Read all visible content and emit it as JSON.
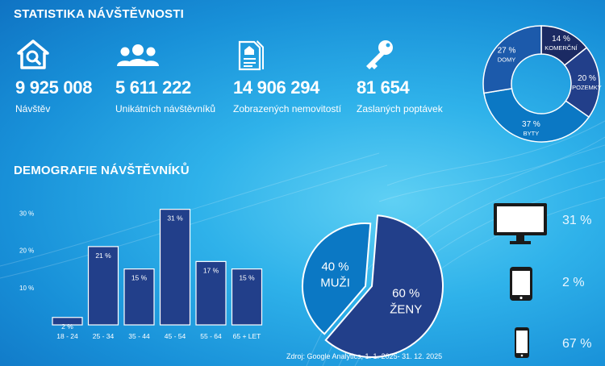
{
  "headings": {
    "stats": "STATISTIKA NÁVŠTĚVNOSTI",
    "demography": "DEMOGRAFIE NÁVŠTĚVNÍKŮ"
  },
  "stats": [
    {
      "icon": "house-search-icon",
      "value": "9 925 008",
      "label": "Návštěv"
    },
    {
      "icon": "users-icon",
      "value": "5 611 222",
      "label": "Unikátních návštěvníků"
    },
    {
      "icon": "listing-document-icon",
      "value": "14 906 294",
      "label": "Zobrazených nemovitostí"
    },
    {
      "icon": "key-icon",
      "value": "81 654",
      "label": "Zaslaných poptávek"
    }
  ],
  "chart_data": [
    {
      "type": "pie",
      "categories": [
        "KOMERČNÍ",
        "POZEMKY",
        "BYTY",
        "DOMY"
      ],
      "values": [
        14,
        20,
        37,
        27
      ],
      "labels": [
        "14 %",
        "20 %",
        "37 %",
        "27 %"
      ],
      "colors": [
        "#1b2a63",
        "#223f8a",
        "#0b78c4",
        "#1c5aab"
      ]
    },
    {
      "type": "bar",
      "categories": [
        "18 - 24",
        "25 - 34",
        "35 - 44",
        "45 - 54",
        "55 - 64",
        "65 + LET"
      ],
      "values": [
        2,
        21,
        15,
        31,
        17,
        15
      ],
      "labels": [
        "2 %",
        "21 %",
        "15 %",
        "31 %",
        "17 %",
        "15 %"
      ],
      "yticks": [
        10,
        20,
        30
      ],
      "ytick_labels": [
        "10 %",
        "20 %",
        "30 %"
      ],
      "ylim": [
        0,
        32
      ],
      "color": "#223f8a"
    },
    {
      "type": "pie",
      "categories": [
        "MUŽI",
        "ŽENY"
      ],
      "values": [
        40,
        60
      ],
      "labels": [
        "40 %",
        "60 %"
      ],
      "colors": [
        "#0b78c4",
        "#223f8a"
      ]
    },
    {
      "type": "bar",
      "categories": [
        "desktop-icon",
        "tablet-icon",
        "smartphone-icon"
      ],
      "values": [
        31,
        2,
        67
      ],
      "labels": [
        "31 %",
        "2 %",
        "67 %"
      ]
    }
  ],
  "source": "Zdroj: Google Analytics, 1. 1. 2025- 31. 12. 2025",
  "colors": {
    "background": "#1f9be0",
    "bar": "#223f8a",
    "accent_dark": "#1b2a63"
  }
}
